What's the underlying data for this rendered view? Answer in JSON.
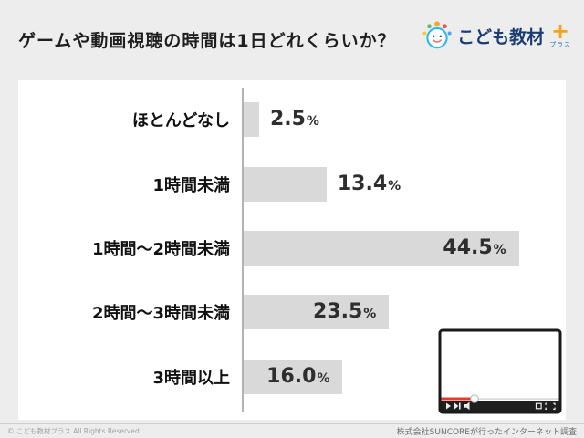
{
  "header": {
    "title": "ゲームや動画視聴の時間は1日どれくらいか？"
  },
  "logo": {
    "name": "こども教材",
    "plus_mark": "+",
    "plus_label": "プラス"
  },
  "chart_data": {
    "type": "bar",
    "orientation": "horizontal",
    "title": "ゲームや動画視聴の時間は1日どれくらいか？",
    "categories": [
      "ほとんどなし",
      "1時間未満",
      "1時間～2時間未満",
      "2時間～3時間未満",
      "3時間以上"
    ],
    "values": [
      2.5,
      13.4,
      44.5,
      23.5,
      16.0
    ],
    "unit": "%",
    "xlim": [
      0,
      50
    ],
    "bar_color": "#d9d9d9",
    "grid": false,
    "legend": false
  },
  "footer": {
    "left": "© こども教材プラス All Rights Reserved",
    "right": "株式会社SUNCOREが行ったインターネット調査"
  }
}
